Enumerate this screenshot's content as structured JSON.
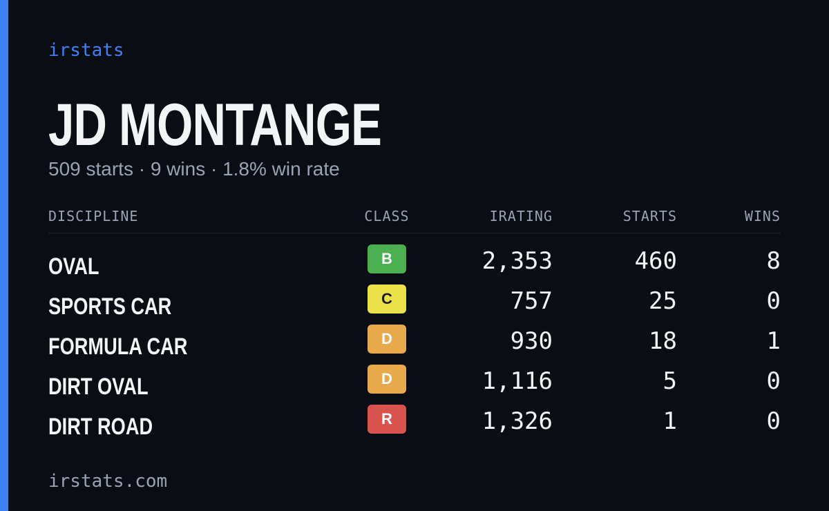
{
  "header": {
    "brand": "irstats",
    "name": "JD MONTANGE",
    "summary": "509 starts · 9 wins · 1.8% win rate"
  },
  "table": {
    "columns": [
      "DISCIPLINE",
      "CLASS",
      "IRATING",
      "STARTS",
      "WINS"
    ],
    "rows": [
      {
        "discipline": "OVAL",
        "class": "B",
        "class_color": "#4caf50",
        "class_text_color": "#ffffff",
        "irating": "2,353",
        "starts": 460,
        "wins": 8
      },
      {
        "discipline": "SPORTS CAR",
        "class": "C",
        "class_color": "#ebe24a",
        "class_text_color": "#1a1a1a",
        "irating": 757,
        "starts": 25,
        "wins": 0
      },
      {
        "discipline": "FORMULA CAR",
        "class": "D",
        "class_color": "#e8a94b",
        "class_text_color": "#ffffff",
        "irating": 930,
        "starts": 18,
        "wins": 1
      },
      {
        "discipline": "DIRT OVAL",
        "class": "D",
        "class_color": "#e8a94b",
        "class_text_color": "#ffffff",
        "irating": "1,116",
        "starts": 5,
        "wins": 0
      },
      {
        "discipline": "DIRT ROAD",
        "class": "R",
        "class_color": "#d9534f",
        "class_text_color": "#ffffff",
        "irating": "1,326",
        "starts": 1,
        "wins": 0
      }
    ]
  },
  "footer": {
    "url": "irstats.com"
  }
}
